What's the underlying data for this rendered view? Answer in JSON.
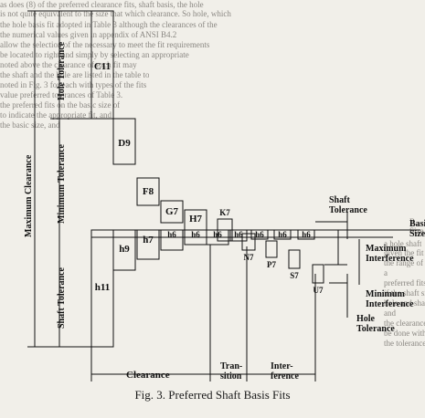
{
  "background_text": {
    "lines": [
      "as does (8) of the preferred clearance fits, shaft basis, the hole",
      "is not quite equivalent to the size that which clearance. So hole, which",
      "the hole basis fit adopted in Table 3 although the clearances of the",
      "the numerical values given in appendix of ANSI B4.2",
      "allow the selection of the necessary to meet the fit requirements",
      "be located to right and simply by selecting an appropriate",
      "noted above the clearance of each fit may",
      "the shaft and the hole are listed in the table to",
      "noted in Fig. 3 for each with types of the fits",
      "value preferred tolerances of Table 3.",
      "the preferred fits on the basic size of",
      "to indicate the appropriate fit, and",
      "the basic size, and",
      "B",
      "Size",
      "a hole shaft",
      "given the fit",
      "the range of 40 mm",
      "a",
      "preferred fits is available",
      "if the shaft size",
      "hole and shaft limit",
      "and",
      "the clearance",
      "be done within 100 mm",
      "the tolerance range"
    ]
  },
  "diagram": {
    "left_labels": {
      "maximum_clearance": "Maximum Clearance",
      "hole_tolerance": "Hole Tolerance",
      "minimum_tolerance": "Minimum Tolerance",
      "shaft_tolerance": "Shaft Tolerance"
    },
    "hole_boxes": [
      "C11",
      "D9",
      "F8",
      "G7",
      "H7",
      "K7",
      "N7",
      "P7",
      "S7",
      "U7"
    ],
    "shaft_boxes": [
      "h11",
      "h9",
      "h7",
      "h6",
      "h6",
      "h6",
      "h6",
      "h6",
      "h6",
      "h6"
    ],
    "right_labels": {
      "shaft_tolerance": "Shaft\nTolerance",
      "basic_size": "Basic\nSize",
      "maximum_interference": "Maximum\nInterference",
      "minimum_interference": "Minimum\nInterference",
      "hole_tolerance": "Hole\nTolerance"
    },
    "bottom_labels": {
      "clearance": "Clearance",
      "transition": "Tran-\nsition",
      "interference": "Inter-\nference"
    }
  },
  "caption": "Fig. 3. Preferred Shaft Basis Fits"
}
